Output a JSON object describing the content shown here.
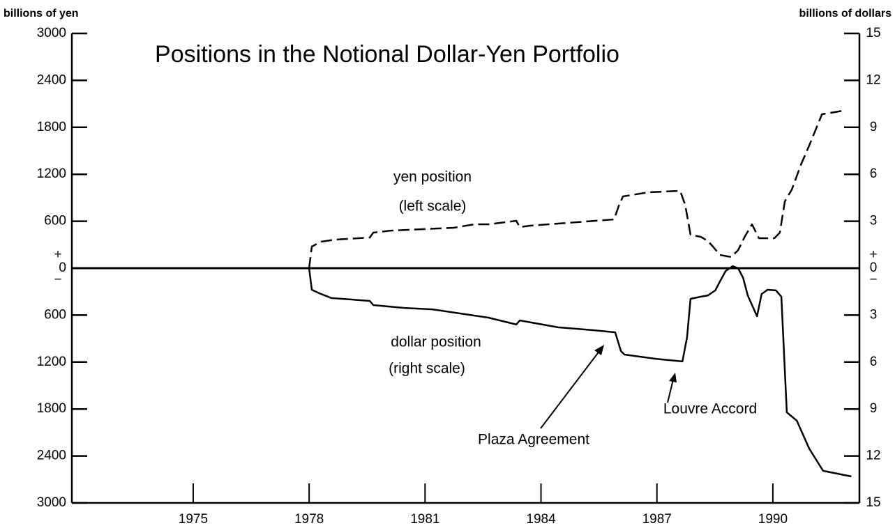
{
  "chart_data": {
    "type": "line",
    "title": "Positions in the Notional Dollar-Yen Portfolio",
    "ylabel": "billions of yen",
    "y2label": "billions of dollars",
    "xlim": [
      1971.86,
      1992.24
    ],
    "xticks": [
      1975,
      1978,
      1981,
      1984,
      1987,
      1990
    ],
    "ylim": [
      -3000,
      3000
    ],
    "yticks": [
      {
        "value": -3000,
        "label": "3000"
      },
      {
        "value": -2400,
        "label": "2400"
      },
      {
        "value": -1800,
        "label": "1800"
      },
      {
        "value": -1200,
        "label": "1200"
      },
      {
        "value": -600,
        "label": "600"
      },
      0,
      600,
      1200,
      1800,
      2400,
      3000
    ],
    "y2lim": [
      -15,
      15
    ],
    "y2ticks": [
      {
        "value": -15,
        "label": "15"
      },
      {
        "value": -12,
        "label": "12"
      },
      {
        "value": -9,
        "label": "9"
      },
      {
        "value": -6,
        "label": "6"
      },
      {
        "value": -3,
        "label": "3"
      },
      0,
      3,
      6,
      9,
      12,
      15
    ],
    "zero_signs": [
      "+",
      "−"
    ],
    "series": [
      {
        "name": "yen position",
        "color": "#000000",
        "style": "dashed",
        "x": [
          1978.0,
          1978.07,
          1978.31,
          1978.67,
          1979.57,
          1979.66,
          1980.11,
          1981.74,
          1982.28,
          1982.64,
          1983.36,
          1983.45,
          1983.72,
          1984.44,
          1985.17,
          1985.89,
          1986.01,
          1986.12,
          1986.79,
          1987.6,
          1987.73,
          1987.87,
          1988.14,
          1988.32,
          1988.45,
          1988.63,
          1988.92,
          1989.1,
          1989.28,
          1989.46,
          1989.64,
          1990.04,
          1990.18,
          1990.31,
          1990.49,
          1990.73,
          1990.94,
          1991.27,
          1991.81
        ],
        "values": [
          0,
          276,
          338,
          365,
          392,
          454,
          480,
          516,
          561,
          561,
          605,
          525,
          543,
          570,
          596,
          623,
          792,
          917,
          970,
          988,
          810,
          427,
          400,
          347,
          276,
          169,
          142,
          231,
          409,
          561,
          383,
          383,
          454,
          854,
          1005,
          1326,
          1567,
          1967,
          2012
        ]
      },
      {
        "name": "dollar position",
        "color": "#000000",
        "style": "solid",
        "axis": "y2",
        "x": [
          1978.0,
          1978.07,
          1978.31,
          1978.58,
          1979.57,
          1979.66,
          1980.47,
          1981.19,
          1982.64,
          1983.36,
          1983.45,
          1984.44,
          1985.35,
          1985.92,
          1986.07,
          1986.16,
          1986.97,
          1987.66,
          1987.78,
          1987.87,
          1988.14,
          1988.32,
          1988.51,
          1988.63,
          1988.78,
          1988.96,
          1989.1,
          1989.23,
          1989.35,
          1989.59,
          1989.71,
          1989.86,
          1990.08,
          1990.22,
          1990.36,
          1990.62,
          1990.94,
          1991.3,
          1992.03
        ],
        "values": [
          0,
          -1.38,
          -1.65,
          -1.91,
          -2.09,
          -2.36,
          -2.54,
          -2.63,
          -3.16,
          -3.6,
          -3.34,
          -3.78,
          -3.96,
          -4.1,
          -5.3,
          -5.52,
          -5.79,
          -5.96,
          -4.41,
          -1.96,
          -1.82,
          -1.74,
          -1.42,
          -0.85,
          -0.18,
          0.13,
          0,
          -0.62,
          -1.74,
          -3.07,
          -1.65,
          -1.38,
          -1.42,
          -1.82,
          -9.21,
          -9.75,
          -11.53,
          -12.95,
          -13.31
        ]
      }
    ],
    "annotations": [
      "yen position",
      "(left scale)",
      "dollar position",
      "(right scale)",
      "Plaza Agreement",
      "Louvre Accord"
    ]
  }
}
